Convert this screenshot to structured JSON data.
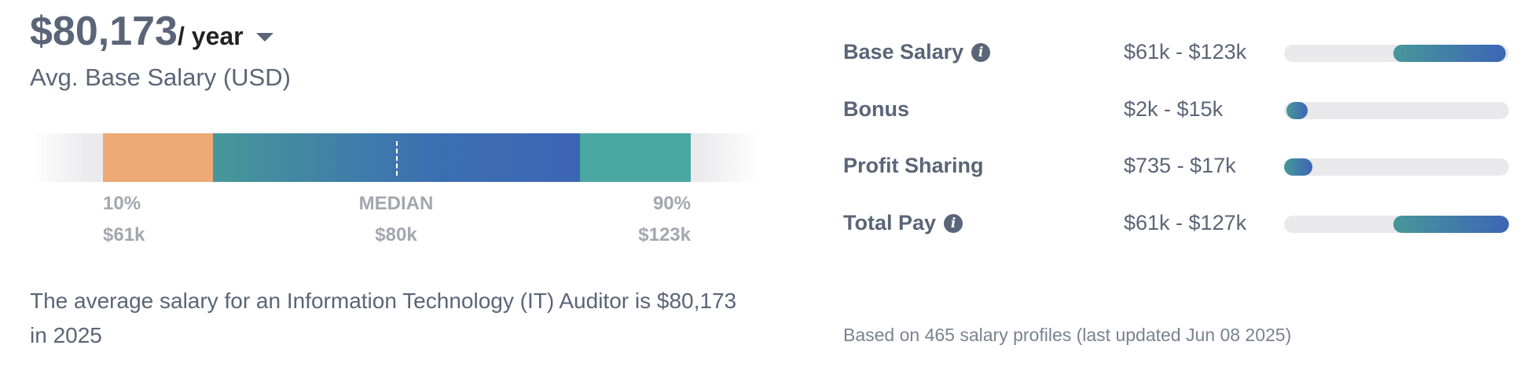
{
  "header": {
    "salary": "$80,173",
    "period": "/ year",
    "subtitle": "Avg. Base Salary (USD)"
  },
  "distribution": {
    "low": {
      "label": "10%",
      "value": "$61k"
    },
    "median": {
      "label": "MEDIAN",
      "value": "$80k"
    },
    "high": {
      "label": "90%",
      "value": "$123k"
    },
    "colors": {
      "low": "#eeaa74",
      "mid_start": "#47979a",
      "mid_end": "#3d65b6",
      "high": "#4ba7a2"
    }
  },
  "summary": "The average salary for an Information Technology (IT) Auditor is $80,173 in 2025",
  "pay_breakdown": [
    {
      "label": "Base Salary",
      "range": "$61k - $123k",
      "info_icon": true,
      "fill_start": 0.485,
      "fill_end": 0.985
    },
    {
      "label": "Bonus",
      "range": "$2k - $15k",
      "info_icon": false,
      "fill_start": 0.01,
      "fill_end": 0.105
    },
    {
      "label": "Profit Sharing",
      "range": "$735 - $17k",
      "info_icon": false,
      "fill_start": 0.0,
      "fill_end": 0.125
    },
    {
      "label": "Total Pay",
      "range": "$61k - $127k",
      "info_icon": true,
      "fill_start": 0.485,
      "fill_end": 1.0
    }
  ],
  "footnote": "Based on 465 salary profiles (last updated Jun 08 2025)"
}
